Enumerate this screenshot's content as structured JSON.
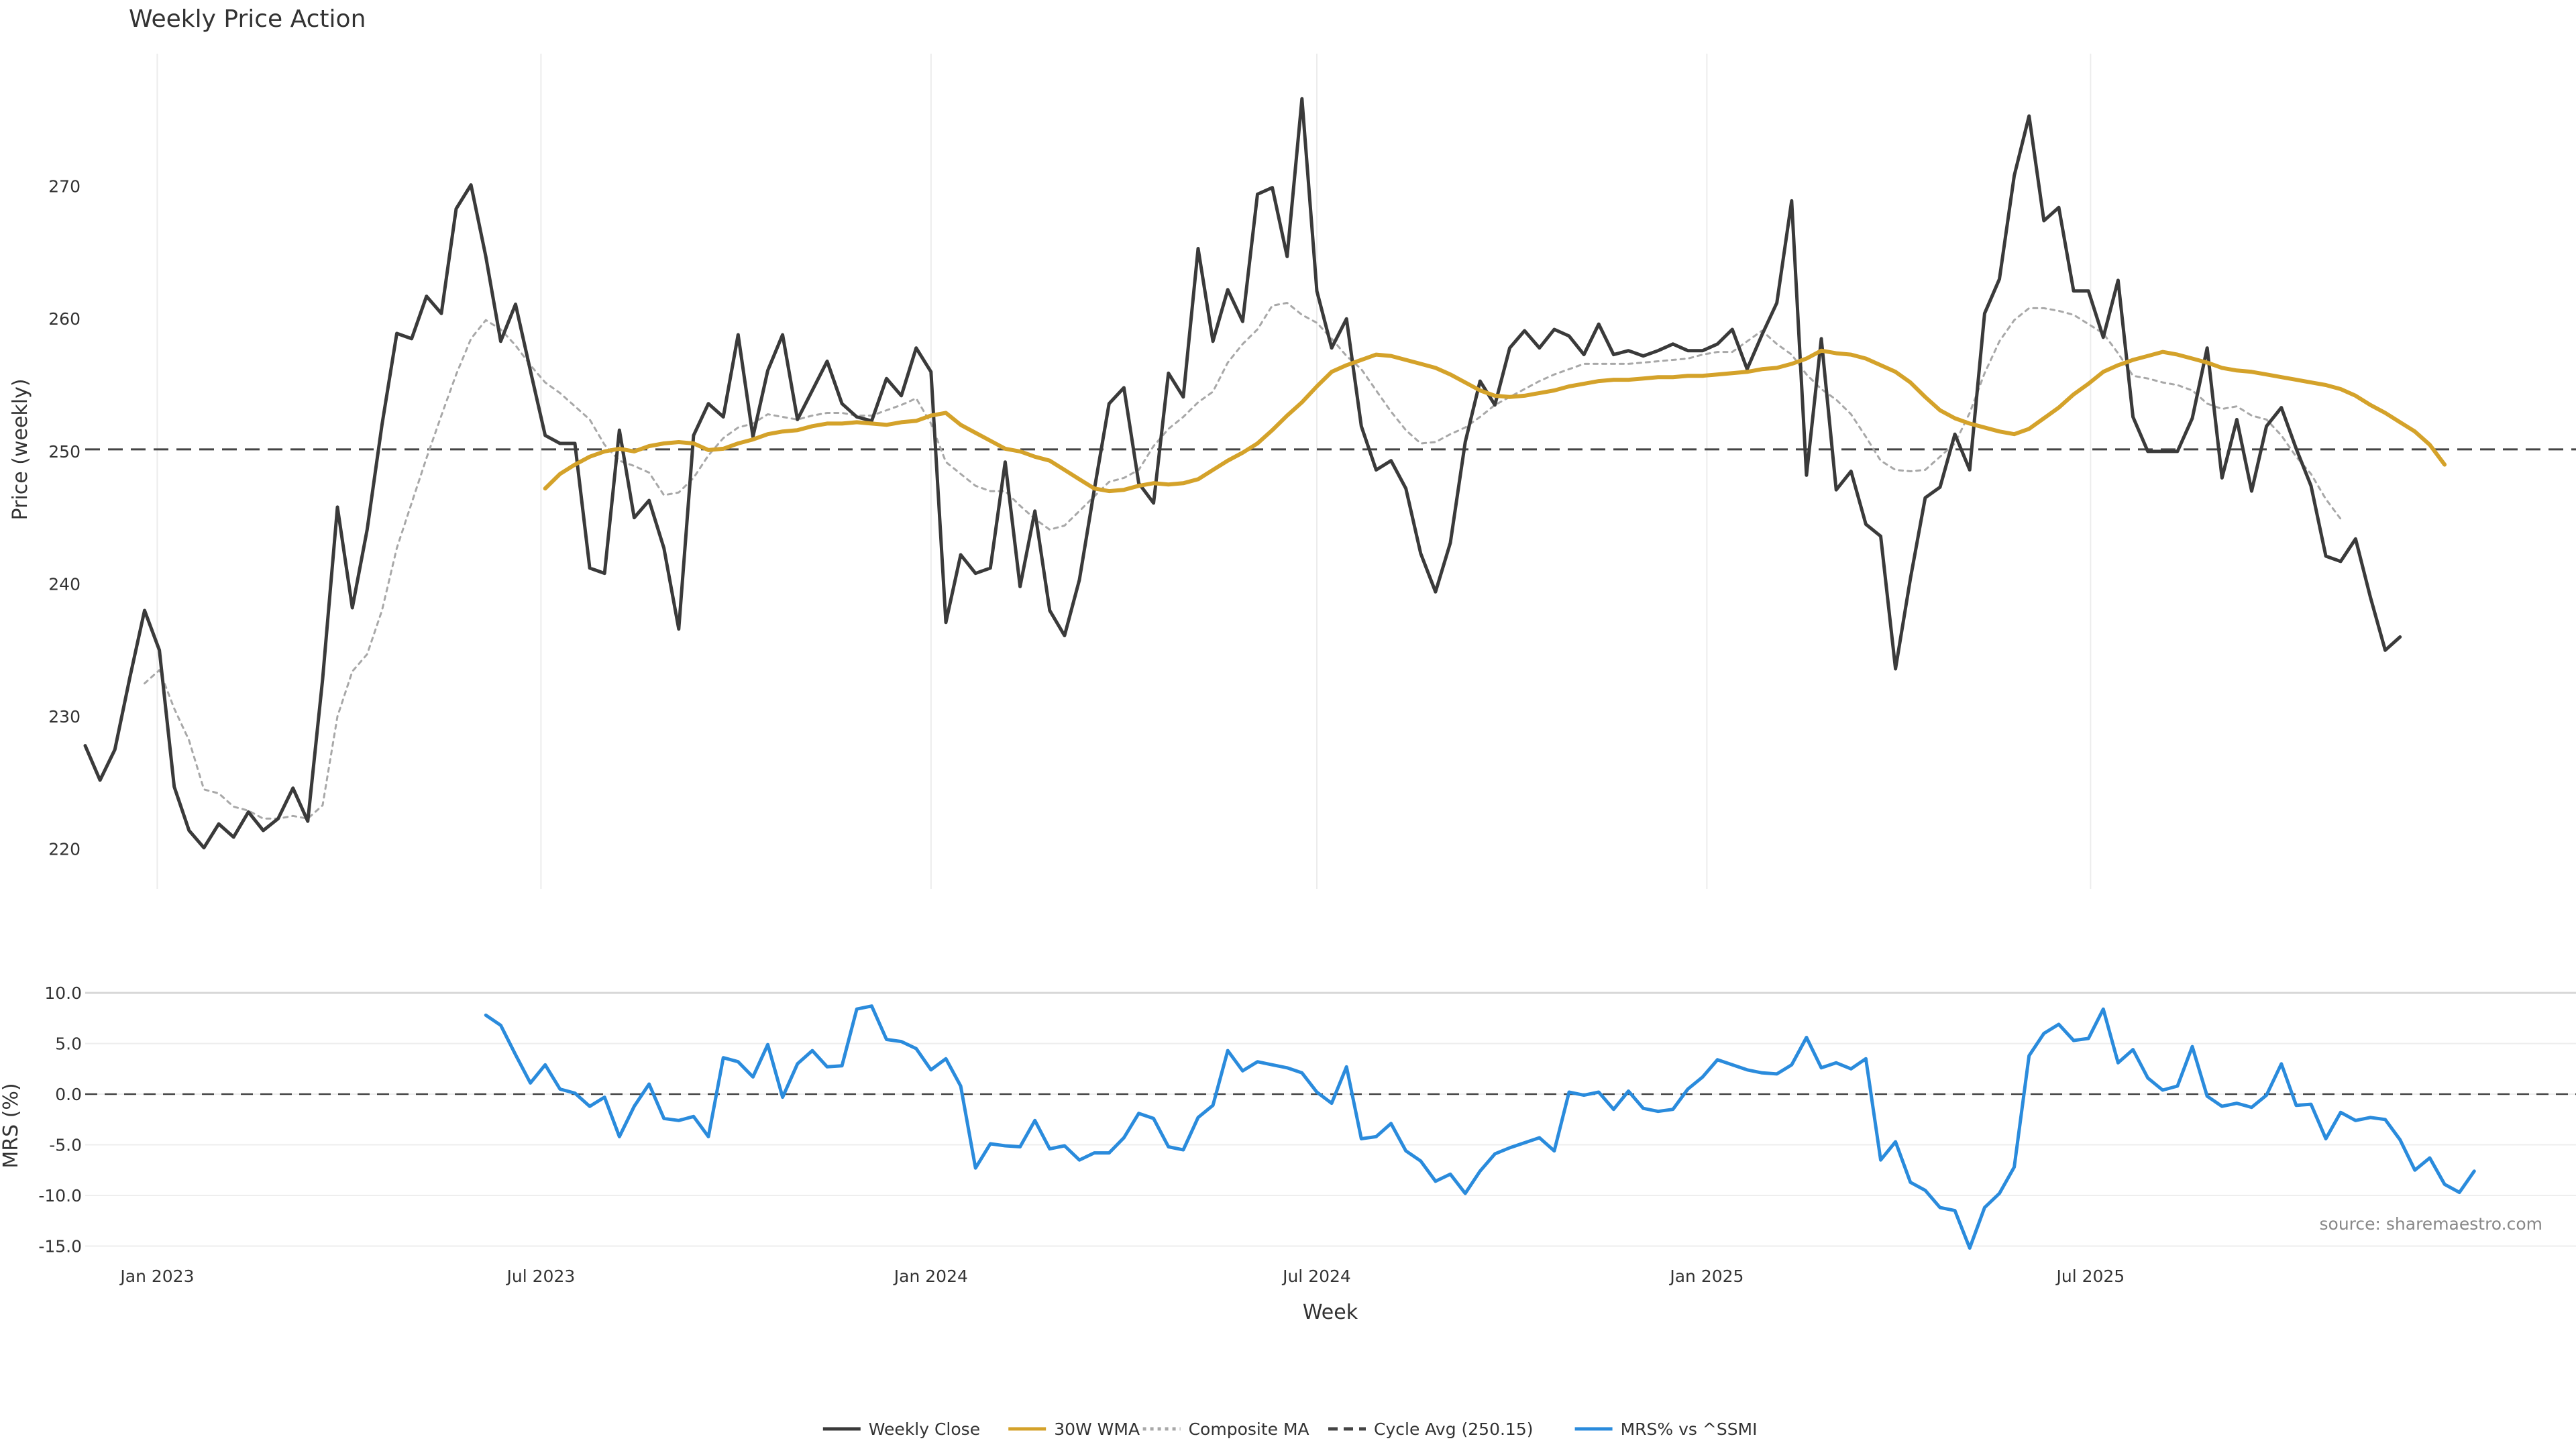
{
  "chart_data": [
    {
      "type": "line",
      "title": "Weekly Price Action",
      "ylabel": "Price (weekly)",
      "ylim": [
        217,
        280
      ],
      "yticks": [
        220,
        230,
        240,
        250,
        260,
        270
      ],
      "x_start": "2022-11-28",
      "x_step_days": 7,
      "grid": "vertical only",
      "series": [
        {
          "name": "Weekly Close",
          "color": "#3a3a3a",
          "style": "solid",
          "values": [
            227.8,
            225.2,
            227.5,
            232.9,
            238.0,
            235.0,
            224.7,
            221.4,
            220.1,
            221.9,
            220.9,
            222.8,
            221.4,
            222.3,
            224.6,
            222.1,
            232.8,
            245.8,
            238.2,
            244.1,
            252.0,
            258.9,
            258.5,
            261.7,
            260.4,
            268.3,
            270.1,
            264.7,
            258.3,
            261.1,
            256.1,
            251.2,
            250.6,
            250.6,
            241.2,
            240.8,
            251.6,
            245.0,
            246.3,
            242.7,
            236.6,
            251.2,
            253.6,
            252.6,
            258.8,
            251.1,
            256.1,
            258.8,
            252.4,
            254.6,
            256.8,
            253.6,
            252.6,
            252.3,
            255.5,
            254.2,
            257.8,
            256.0,
            237.1,
            242.2,
            240.8,
            241.2,
            249.2,
            239.8,
            245.5,
            238.0,
            236.1,
            240.3,
            247.1,
            253.6,
            254.8,
            247.6,
            246.1,
            255.9,
            254.1,
            265.3,
            258.3,
            262.2,
            259.8,
            269.4,
            269.9,
            264.7,
            276.6,
            262.1,
            257.8,
            260.0,
            251.9,
            248.6,
            249.3,
            247.2,
            242.3,
            239.4,
            243.1,
            250.7,
            255.3,
            253.5,
            257.8,
            259.1,
            257.8,
            259.2,
            258.7,
            257.3,
            259.6,
            257.3,
            257.6,
            257.2,
            257.6,
            258.1,
            257.6,
            257.6,
            258.1,
            259.2,
            256.2,
            258.8,
            261.2,
            268.9,
            248.2,
            258.5,
            247.1,
            248.5,
            244.5,
            243.6,
            233.6,
            240.4,
            246.5,
            247.3,
            251.3,
            248.6,
            260.4,
            263.0,
            270.8,
            275.3,
            267.4,
            268.4,
            262.1,
            262.1,
            258.6,
            262.9,
            252.6,
            250.0,
            250.0,
            250.0,
            252.5,
            257.8,
            248.0,
            252.4,
            247.0,
            251.9,
            253.3,
            250.2,
            247.4,
            242.1,
            241.7,
            243.4,
            239.0,
            235.0,
            236.0
          ]
        },
        {
          "name": "30W WMA",
          "color": "#d4a22a",
          "style": "solid",
          "start_index": 31,
          "values": [
            247.2,
            248.3,
            249.0,
            249.6,
            250.0,
            250.2,
            250.0,
            250.4,
            250.6,
            250.7,
            250.6,
            250.1,
            250.2,
            250.6,
            250.9,
            251.3,
            251.5,
            251.6,
            251.9,
            252.1,
            252.1,
            252.2,
            252.1,
            252.0,
            252.2,
            252.3,
            252.7,
            252.9,
            252.0,
            251.4,
            250.8,
            250.2,
            250.0,
            249.6,
            249.3,
            248.6,
            247.9,
            247.2,
            247.0,
            247.1,
            247.4,
            247.6,
            247.5,
            247.6,
            247.9,
            248.6,
            249.3,
            249.9,
            250.6,
            251.6,
            252.7,
            253.7,
            254.9,
            256.0,
            256.5,
            256.9,
            257.3,
            257.2,
            256.9,
            256.6,
            256.3,
            255.8,
            255.2,
            254.6,
            254.2,
            254.1,
            254.2,
            254.4,
            254.6,
            254.9,
            255.1,
            255.3,
            255.4,
            255.4,
            255.5,
            255.6,
            255.6,
            255.7,
            255.7,
            255.8,
            255.9,
            256.0,
            256.2,
            256.3,
            256.6,
            257.0,
            257.6,
            257.4,
            257.3,
            257.0,
            256.5,
            256.0,
            255.2,
            254.1,
            253.1,
            252.5,
            252.1,
            251.8,
            251.5,
            251.3,
            251.7,
            252.5,
            253.3,
            254.3,
            255.1,
            256.0,
            256.5,
            256.9,
            257.2,
            257.5,
            257.3,
            257.0,
            256.7,
            256.3,
            256.1,
            256.0,
            255.8,
            255.6,
            255.4,
            255.2,
            255.0,
            254.7,
            254.2,
            253.5,
            252.9,
            252.2,
            251.5,
            250.5,
            249.0
          ]
        },
        {
          "name": "Composite MA",
          "color": "#a8a8a8",
          "style": "dotted",
          "start_index": 4,
          "values": [
            232.5,
            233.5,
            230.6,
            228.2,
            224.5,
            224.2,
            223.2,
            222.9,
            222.3,
            222.3,
            222.5,
            222.3,
            223.3,
            230.0,
            233.4,
            234.7,
            238.0,
            242.7,
            246.1,
            249.5,
            252.7,
            255.8,
            258.5,
            259.9,
            259.2,
            258.0,
            256.5,
            255.2,
            254.4,
            253.4,
            252.4,
            250.5,
            249.3,
            248.9,
            248.4,
            246.7,
            246.9,
            248.0,
            249.7,
            251.0,
            251.8,
            252.1,
            252.8,
            252.6,
            252.4,
            252.7,
            252.9,
            252.9,
            252.7,
            252.7,
            253.1,
            253.5,
            254.0,
            252.1,
            249.2,
            248.3,
            247.4,
            247.0,
            247.0,
            245.9,
            244.9,
            244.1,
            244.4,
            245.5,
            246.6,
            247.7,
            248.0,
            248.6,
            250.4,
            251.7,
            252.6,
            253.7,
            254.5,
            256.7,
            258.1,
            259.2,
            261.0,
            261.2,
            260.3,
            259.7,
            258.5,
            257.2,
            256.2,
            254.6,
            253.0,
            251.6,
            250.6,
            250.7,
            251.3,
            251.8,
            252.6,
            253.5,
            254.1,
            254.7,
            255.3,
            255.8,
            256.2,
            256.6,
            256.6,
            256.6,
            256.6,
            256.7,
            256.8,
            256.9,
            257.0,
            257.3,
            257.5,
            257.5,
            258.3,
            259.1,
            258.1,
            257.3,
            255.8,
            254.7,
            253.9,
            252.8,
            251.1,
            249.3,
            248.6,
            248.5,
            248.6,
            249.6,
            250.6,
            252.9,
            255.9,
            258.3,
            259.9,
            260.8,
            260.8,
            260.6,
            260.3,
            259.6,
            258.9,
            257.4,
            255.7,
            255.5,
            255.2,
            255.0,
            254.6,
            253.6,
            253.2,
            253.4,
            252.7,
            252.4,
            251.2,
            249.6,
            248.3,
            246.4,
            244.9
          ]
        },
        {
          "name": "Cycle Avg (250.15)",
          "color": "#444444",
          "style": "dashed",
          "constant": 250.15
        }
      ]
    },
    {
      "type": "line",
      "ylabel": "MRS (%)",
      "ylim": [
        -15.3,
        11
      ],
      "yticks": [
        10.0,
        5.0,
        0.0,
        -5.0,
        -10.0,
        -15.0
      ],
      "ytick_labels": [
        "10.0",
        "5.0",
        "0.0",
        "-5.0",
        "-10.0",
        "-15.0"
      ],
      "xlabel": "Week",
      "x_ticks": [
        {
          "label": "Jan 2023",
          "date": "2023-01-01"
        },
        {
          "label": "Jul 2023",
          "date": "2023-07-01"
        },
        {
          "label": "Jan 2024",
          "date": "2024-01-01"
        },
        {
          "label": "Jul 2024",
          "date": "2024-07-01"
        },
        {
          "label": "Jan 2025",
          "date": "2025-01-01"
        },
        {
          "label": "Jul 2025",
          "date": "2025-07-01"
        }
      ],
      "zero_line": "dashed",
      "series": [
        {
          "name": "MRS% vs ^SSMI",
          "color": "#2a8bdc",
          "style": "solid",
          "start_index": 27,
          "values": [
            7.8,
            6.8,
            3.9,
            1.1,
            2.9,
            0.5,
            0.1,
            -1.2,
            -0.3,
            -4.2,
            -1.2,
            1.0,
            -2.4,
            -2.6,
            -2.2,
            -4.2,
            3.6,
            3.2,
            1.7,
            4.9,
            -0.3,
            3.0,
            4.3,
            2.7,
            2.8,
            8.4,
            8.7,
            5.4,
            5.2,
            4.5,
            2.4,
            3.5,
            0.8,
            -7.3,
            -4.9,
            -5.1,
            -5.2,
            -2.6,
            -5.4,
            -5.1,
            -6.5,
            -5.8,
            -5.8,
            -4.3,
            -1.9,
            -2.4,
            -5.2,
            -5.5,
            -2.3,
            -1.1,
            4.3,
            2.3,
            3.2,
            2.9,
            2.6,
            2.1,
            0.2,
            -0.9,
            2.7,
            -4.4,
            -4.2,
            -2.9,
            -5.6,
            -6.6,
            -8.6,
            -7.9,
            -9.8,
            -7.6,
            -5.9,
            -5.3,
            -4.8,
            -4.3,
            -5.6,
            0.2,
            -0.1,
            0.2,
            -1.5,
            0.3,
            -1.4,
            -1.7,
            -1.5,
            0.5,
            1.7,
            3.4,
            2.9,
            2.4,
            2.1,
            2.0,
            2.9,
            5.6,
            2.6,
            3.1,
            2.5,
            3.5,
            -6.5,
            -4.7,
            -8.7,
            -9.5,
            -11.2,
            -11.5,
            -15.2,
            -11.2,
            -9.8,
            -7.2,
            3.8,
            6.0,
            6.9,
            5.3,
            5.5,
            8.4,
            3.1,
            4.4,
            1.6,
            0.4,
            0.8,
            4.7,
            -0.2,
            -1.2,
            -0.9,
            -1.3,
            -0.1,
            3.0,
            -1.1,
            -1.0,
            -4.4,
            -1.8,
            -2.6,
            -2.3,
            -2.5,
            -4.5,
            -7.5,
            -6.3,
            -8.9,
            -9.7,
            -7.6
          ]
        }
      ]
    }
  ],
  "legend": {
    "placement": "bottom-center",
    "items": [
      {
        "label": "Weekly Close",
        "color": "#3a3a3a",
        "style": "solid"
      },
      {
        "label": "30W WMA",
        "color": "#d4a22a",
        "style": "solid"
      },
      {
        "label": "Composite MA",
        "color": "#a8a8a8",
        "style": "dotted"
      },
      {
        "label": "Cycle Avg (250.15)",
        "color": "#444444",
        "style": "dashed"
      },
      {
        "label": "MRS% vs ^SSMI",
        "color": "#2a8bdc",
        "style": "solid"
      }
    ]
  },
  "source": "source: sharemaestro.com"
}
